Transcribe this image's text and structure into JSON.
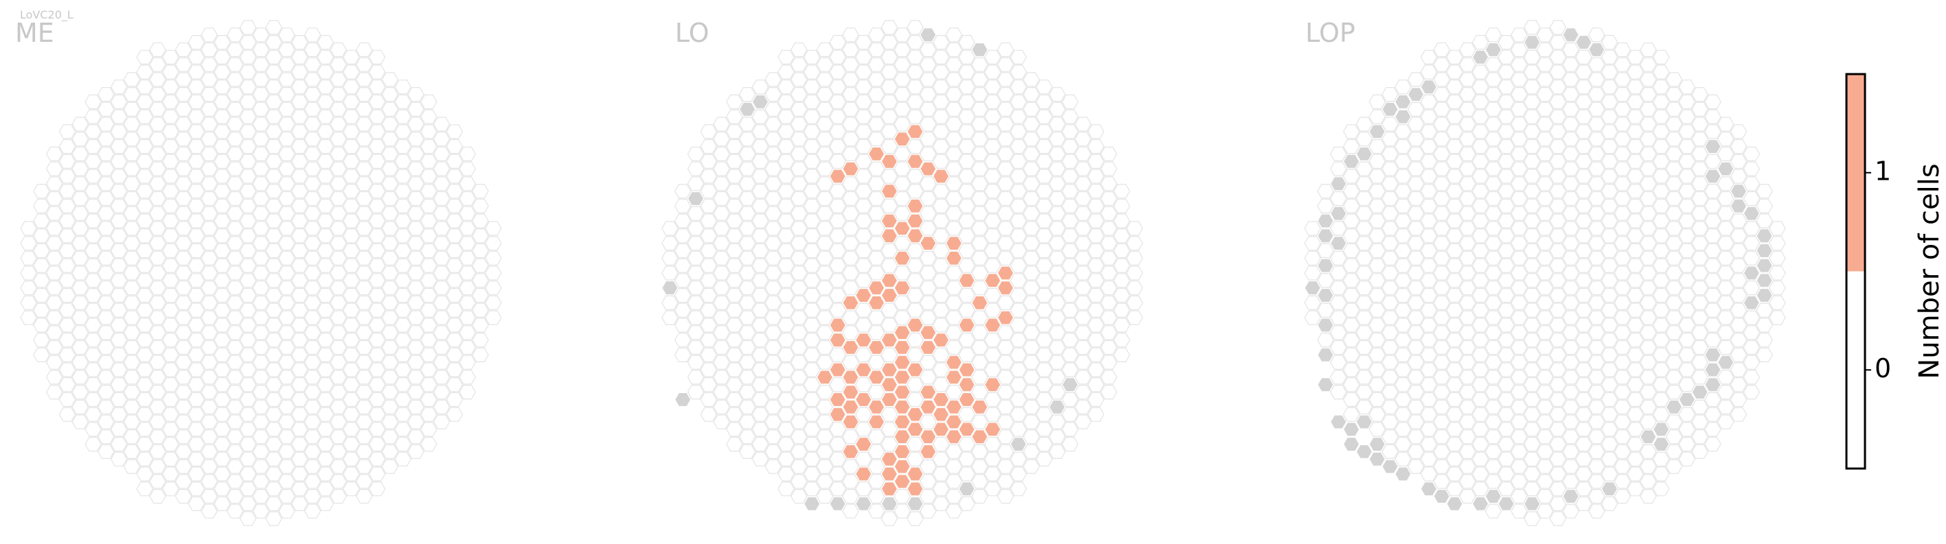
{
  "chart_data": {
    "type": "hexmap",
    "title": "LoVC20_L",
    "colors": {
      "cell": "#f7ac91",
      "missing": "#d3d3d3"
    },
    "panels": [
      {
        "name": "ME",
        "cells": [],
        "values": [],
        "missing": []
      },
      {
        "name": "LO",
        "cells": [
          [
            1,
            -10
          ],
          [
            0,
            -9
          ],
          [
            1,
            -8
          ],
          [
            -2,
            -8
          ],
          [
            -1,
            -8
          ],
          [
            -4,
            -7
          ],
          [
            -5,
            -7
          ],
          [
            2,
            -7
          ],
          [
            3,
            -7
          ],
          [
            -1,
            -6
          ],
          [
            1,
            -5
          ],
          [
            -1,
            -4
          ],
          [
            1,
            -4
          ],
          [
            0,
            -3
          ],
          [
            -1,
            -3
          ],
          [
            1,
            -3
          ],
          [
            2,
            -2
          ],
          [
            0,
            -1
          ],
          [
            4,
            -2
          ],
          [
            4,
            -1
          ],
          [
            5,
            0
          ],
          [
            8,
            0
          ],
          [
            7,
            0
          ],
          [
            8,
            1
          ],
          [
            -2,
            1
          ],
          [
            -1,
            0
          ],
          [
            0,
            1
          ],
          [
            -3,
            1
          ],
          [
            -2,
            2
          ],
          [
            -1,
            1
          ],
          [
            -4,
            2
          ],
          [
            6,
            2
          ],
          [
            8,
            3
          ],
          [
            7,
            3
          ],
          [
            5,
            3
          ],
          [
            -5,
            3
          ],
          [
            -5,
            4
          ],
          [
            1,
            3
          ],
          [
            0,
            4
          ],
          [
            2,
            4
          ],
          [
            3,
            4
          ],
          [
            -1,
            4
          ],
          [
            -3,
            4
          ],
          [
            -4,
            5
          ],
          [
            -2,
            5
          ],
          [
            0,
            5
          ],
          [
            2,
            5
          ],
          [
            -5,
            6
          ],
          [
            -3,
            6
          ],
          [
            -1,
            6
          ],
          [
            0,
            6
          ],
          [
            1,
            6
          ],
          [
            4,
            6
          ],
          [
            5,
            6
          ],
          [
            -6,
            7
          ],
          [
            -4,
            7
          ],
          [
            -2,
            7
          ],
          [
            -1,
            7
          ],
          [
            0,
            7
          ],
          [
            4,
            7
          ],
          [
            5,
            7
          ],
          [
            7,
            7
          ],
          [
            -5,
            8
          ],
          [
            -4,
            8
          ],
          [
            -3,
            8
          ],
          [
            -1,
            8
          ],
          [
            0,
            8
          ],
          [
            2,
            8
          ],
          [
            3,
            8
          ],
          [
            5,
            8
          ],
          [
            -5,
            9
          ],
          [
            -4,
            9
          ],
          [
            -2,
            9
          ],
          [
            0,
            9
          ],
          [
            1,
            9
          ],
          [
            2,
            9
          ],
          [
            3,
            9
          ],
          [
            4,
            9
          ],
          [
            6,
            9
          ],
          [
            -4,
            10
          ],
          [
            -2,
            10
          ],
          [
            0,
            10
          ],
          [
            1,
            10
          ],
          [
            3,
            10
          ],
          [
            4,
            10
          ],
          [
            5,
            10
          ],
          [
            7,
            10
          ],
          [
            -3,
            11
          ],
          [
            0,
            11
          ],
          [
            2,
            11
          ],
          [
            4,
            11
          ],
          [
            6,
            11
          ],
          [
            -4,
            12
          ],
          [
            -1,
            12
          ],
          [
            0,
            12
          ],
          [
            2,
            12
          ],
          [
            -3,
            13
          ],
          [
            -1,
            13
          ],
          [
            0,
            13
          ],
          [
            1,
            13
          ],
          [
            -1,
            14
          ],
          [
            0,
            14
          ],
          [
            1,
            14
          ]
        ],
        "values": [
          1,
          1,
          1,
          1,
          1,
          1,
          1,
          1,
          1,
          1,
          1,
          1,
          1,
          1,
          1,
          1,
          1,
          1,
          1,
          1,
          1,
          1,
          1,
          1,
          1,
          1,
          1,
          1,
          1,
          1,
          1,
          1,
          1,
          1,
          1,
          1,
          1,
          1,
          1,
          1,
          1,
          1,
          1,
          1,
          1,
          1,
          1,
          1,
          1,
          1,
          1,
          1,
          1,
          1,
          1,
          1,
          1,
          1,
          1,
          1,
          1,
          1,
          1,
          1,
          1,
          1,
          1,
          1,
          1,
          1,
          1,
          1,
          1,
          1,
          1,
          1,
          1,
          1,
          1,
          1,
          1,
          1,
          1,
          1,
          1,
          1,
          1,
          1,
          1,
          1,
          1,
          1,
          1,
          1,
          1,
          1,
          1,
          1,
          1,
          1,
          1,
          1,
          1
        ],
        "missing": [
          [
            2,
            -16
          ],
          [
            6,
            -15
          ],
          [
            -11,
            -12
          ],
          [
            -12,
            -11
          ],
          [
            -16,
            -5
          ],
          [
            -18,
            1
          ],
          [
            -17,
            8
          ],
          [
            13,
            7
          ],
          [
            12,
            9
          ],
          [
            9,
            11
          ],
          [
            5,
            14
          ],
          [
            -7,
            15
          ],
          [
            -5,
            15
          ],
          [
            -3,
            15
          ],
          [
            -1,
            15
          ],
          [
            1,
            15
          ]
        ]
      },
      {
        "name": "LOP",
        "cells": [],
        "values": [],
        "missing": [
          [
            2,
            -16
          ],
          [
            3,
            -16
          ],
          [
            4,
            -15
          ],
          [
            -1,
            -16
          ],
          [
            -4,
            -15
          ],
          [
            -5,
            -15
          ],
          [
            -9,
            -13
          ],
          [
            -10,
            -12
          ],
          [
            -11,
            -12
          ],
          [
            -12,
            -11
          ],
          [
            -11,
            -11
          ],
          [
            -13,
            -10
          ],
          [
            -14,
            -8
          ],
          [
            -15,
            -8
          ],
          [
            -16,
            -6
          ],
          [
            -16,
            -4
          ],
          [
            -17,
            -4
          ],
          [
            -17,
            -3
          ],
          [
            -16,
            -2
          ],
          [
            -17,
            -1
          ],
          [
            -18,
            1
          ],
          [
            -17,
            1
          ],
          [
            -17,
            3
          ],
          [
            -17,
            5
          ],
          [
            -17,
            7
          ],
          [
            -16,
            10
          ],
          [
            -15,
            10
          ],
          [
            -15,
            11
          ],
          [
            -14,
            10
          ],
          [
            -13,
            11
          ],
          [
            -14,
            12
          ],
          [
            -13,
            12
          ],
          [
            -12,
            13
          ],
          [
            -11,
            13
          ],
          [
            -9,
            14
          ],
          [
            -8,
            15
          ],
          [
            -7,
            15
          ],
          [
            -5,
            15
          ],
          [
            -4,
            15
          ],
          [
            -3,
            15
          ],
          [
            -1,
            15
          ],
          [
            2,
            15
          ],
          [
            5,
            14
          ],
          [
            8,
            11
          ],
          [
            9,
            10
          ],
          [
            9,
            11
          ],
          [
            10,
            9
          ],
          [
            11,
            8
          ],
          [
            12,
            8
          ],
          [
            13,
            7
          ],
          [
            13,
            6
          ],
          [
            14,
            6
          ],
          [
            13,
            5
          ],
          [
            16,
            2
          ],
          [
            17,
            1
          ],
          [
            17,
            0
          ],
          [
            17,
            -1
          ],
          [
            16,
            0
          ],
          [
            17,
            -2
          ],
          [
            17,
            -3
          ],
          [
            16,
            -4
          ],
          [
            15,
            -5
          ],
          [
            15,
            -6
          ],
          [
            14,
            -7
          ],
          [
            13,
            -7
          ],
          [
            13,
            -9
          ]
        ]
      }
    ],
    "colorbar": {
      "label": "Number of cells",
      "ylim": [
        -0.5,
        1.5
      ],
      "yticks": [
        0,
        1
      ],
      "colors": [
        "#ffffff",
        "#f7ac91"
      ]
    }
  }
}
